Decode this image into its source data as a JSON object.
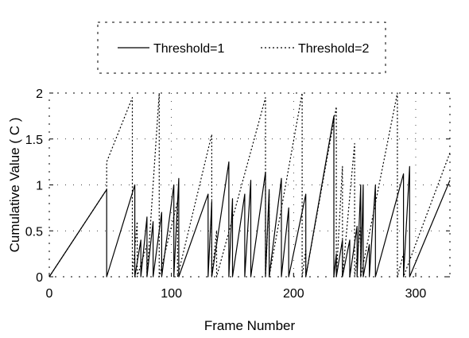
{
  "chart_data": {
    "type": "line",
    "title": "",
    "xlabel": "Frame Number",
    "ylabel": "Cumulative Value ( C )",
    "xlim": [
      0,
      328
    ],
    "ylim": [
      0,
      2
    ],
    "xticks": [
      0,
      100,
      200,
      300
    ],
    "yticks": [
      0,
      0.5,
      1,
      1.5,
      2
    ],
    "xtick_labels": [
      "0",
      "100",
      "200",
      "300"
    ],
    "ytick_labels": [
      "0",
      "0.5",
      "1",
      "1.5",
      "2"
    ],
    "grid": true,
    "legend_position": "top",
    "series": [
      {
        "name": "Threshold=1",
        "style": "solid",
        "color": "#000000",
        "x": [
          0,
          47,
          47,
          70,
          70,
          75,
          75,
          80,
          80,
          85,
          85,
          92,
          92,
          102,
          102,
          106,
          106,
          130,
          130,
          133,
          133,
          147,
          147,
          150,
          150,
          160,
          160,
          165,
          165,
          177,
          177,
          180,
          180,
          190,
          190,
          196,
          196,
          210,
          210,
          233,
          233,
          235,
          235,
          240,
          240,
          246,
          246,
          252,
          252,
          255,
          255,
          257,
          257,
          262,
          262,
          267,
          267,
          290,
          290,
          295,
          295,
          328
        ],
        "y": [
          0,
          0.95,
          0,
          1.0,
          0,
          0.4,
          0,
          0.65,
          0,
          0.6,
          0,
          0.7,
          0,
          1.0,
          0,
          1.07,
          0,
          0.9,
          0,
          0.82,
          0,
          1.25,
          0,
          0.85,
          0,
          0.9,
          0,
          1.05,
          0,
          1.14,
          0,
          0.95,
          0,
          1.07,
          0,
          0.75,
          0,
          0.9,
          0,
          1.75,
          0,
          0.25,
          0,
          0.4,
          0,
          0.4,
          0,
          0.55,
          0,
          1.0,
          0,
          1.0,
          0,
          0.35,
          0,
          1.0,
          0,
          1.12,
          0,
          1.2,
          0,
          1.05
        ]
      },
      {
        "name": "Threshold=2",
        "style": "dashed",
        "color": "#000000",
        "x": [
          0,
          47,
          47,
          68,
          68,
          72,
          72,
          80,
          80,
          90,
          90,
          105,
          105,
          133,
          133,
          137,
          137,
          177,
          177,
          180,
          180,
          207,
          207,
          210,
          210,
          235,
          235,
          240,
          240,
          250,
          250,
          255,
          255,
          285,
          285,
          290,
          290,
          328
        ],
        "y": [
          0,
          0.95,
          1.25,
          1.95,
          0,
          0.6,
          0,
          0.35,
          0,
          2.0,
          0,
          0.82,
          0,
          1.55,
          0,
          0.5,
          0,
          1.95,
          0,
          0.9,
          0,
          2.0,
          0,
          0.3,
          0,
          1.85,
          0,
          1.2,
          0,
          1.45,
          0,
          0.55,
          0,
          2.0,
          0,
          0.25,
          0,
          1.35
        ]
      }
    ]
  }
}
